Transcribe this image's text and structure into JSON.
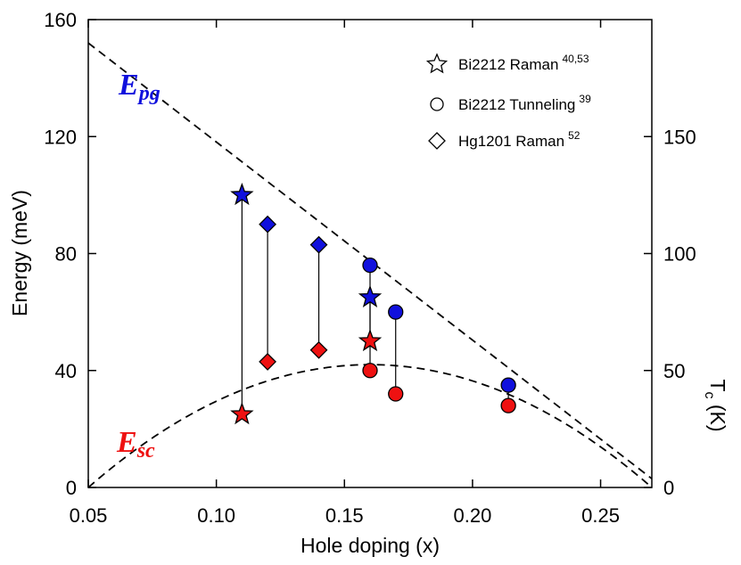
{
  "chart_data": {
    "type": "scatter",
    "xlabel": "Hole doping  (x)",
    "ylabel": "Energy  (meV)",
    "y2label": "T",
    "y2label_sub": "c",
    "y2label_unit": " (K)",
    "xlim": [
      0.05,
      0.27
    ],
    "ylim": [
      0,
      160
    ],
    "y2lim": [
      0,
      200
    ],
    "xticks": [
      0.05,
      0.1,
      0.15,
      0.2,
      0.25
    ],
    "xtick_labels": [
      "0.05",
      "0.10",
      "0.15",
      "0.20",
      "0.25"
    ],
    "yticks": [
      0,
      40,
      80,
      120,
      160
    ],
    "ytick_labels": [
      "0",
      "40",
      "80",
      "120",
      "160"
    ],
    "y2ticks": [
      0,
      50,
      100,
      150
    ],
    "y2tick_labels": [
      "0",
      "50",
      "100",
      "150"
    ],
    "legend_position": "top-right",
    "grid": false,
    "colors": {
      "pg": "#1010dd",
      "sc": "#ee1111"
    },
    "legend": [
      {
        "marker": "star",
        "label": "Bi2212 Raman",
        "sup": "40,53"
      },
      {
        "marker": "circle",
        "label": "Bi2212 Tunneling",
        "sup": "39"
      },
      {
        "marker": "diamond",
        "label": "Hg1201 Raman",
        "sup": "52"
      }
    ],
    "curve_labels": {
      "pg": {
        "main": "E",
        "sub": "pg"
      },
      "sc": {
        "main": "E",
        "sub": "sc"
      }
    },
    "series": [
      {
        "name": "Bi2212 Raman",
        "marker": "star",
        "points": [
          {
            "x": 0.11,
            "pg": 100,
            "sc": 25
          },
          {
            "x": 0.16,
            "pg": 65,
            "sc": 50
          }
        ]
      },
      {
        "name": "Bi2212 Tunneling",
        "marker": "circle",
        "points": [
          {
            "x": 0.16,
            "pg": 76,
            "sc": 40
          },
          {
            "x": 0.17,
            "pg": 60,
            "sc": 32
          },
          {
            "x": 0.214,
            "pg": 35,
            "sc": 28
          }
        ]
      },
      {
        "name": "Hg1201 Raman",
        "marker": "diamond",
        "points": [
          {
            "x": 0.12,
            "pg": 90,
            "sc": 43
          },
          {
            "x": 0.14,
            "pg": 83,
            "sc": 47
          }
        ]
      }
    ],
    "dashed_lines": {
      "pg_line": {
        "x": [
          0.05,
          0.27
        ],
        "y": [
          152,
          3
        ]
      },
      "sc_dome": {
        "x_min": 0.05,
        "x_max": 0.27,
        "x_peak": 0.16,
        "y_peak": 42
      }
    }
  }
}
